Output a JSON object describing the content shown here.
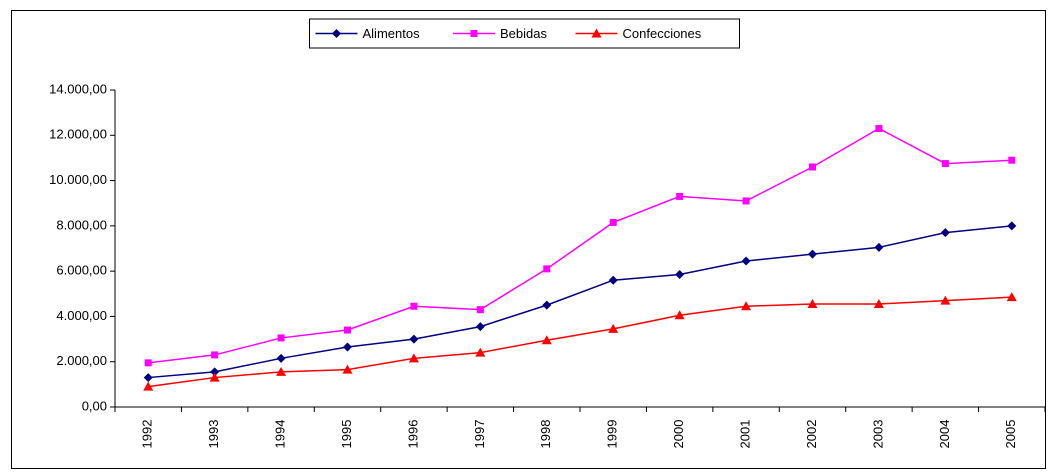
{
  "chart_data": {
    "type": "line",
    "categories": [
      "1992",
      "1993",
      "1994",
      "1995",
      "1996",
      "1997",
      "1998",
      "1999",
      "2000",
      "2001",
      "2002",
      "2003",
      "2004",
      "2005"
    ],
    "series": [
      {
        "name": "Alimentos",
        "color": "#000080",
        "marker": "diamond",
        "values": [
          1300,
          1550,
          2150,
          2650,
          3000,
          3550,
          4500,
          5600,
          5850,
          6450,
          6750,
          7050,
          7700,
          8000
        ]
      },
      {
        "name": "Bebidas",
        "color": "#ff00ff",
        "marker": "square",
        "values": [
          1950,
          2300,
          3050,
          3400,
          4450,
          4300,
          6100,
          8150,
          9300,
          9100,
          10600,
          12300,
          10750,
          10900
        ]
      },
      {
        "name": "Confecciones",
        "color": "#ff0000",
        "marker": "triangle",
        "values": [
          900,
          1300,
          1550,
          1650,
          2150,
          2400,
          2950,
          3450,
          4050,
          4450,
          4550,
          4550,
          4700,
          4850
        ]
      }
    ],
    "ylim": [
      0,
      14000
    ],
    "yticks": [
      {
        "value": 0,
        "label": "0,00"
      },
      {
        "value": 2000,
        "label": "2.000,00"
      },
      {
        "value": 4000,
        "label": "4.000,00"
      },
      {
        "value": 6000,
        "label": "6.000,00"
      },
      {
        "value": 8000,
        "label": "8.000,00"
      },
      {
        "value": 10000,
        "label": "10.000,00"
      },
      {
        "value": 12000,
        "label": "12.000,00"
      },
      {
        "value": 14000,
        "label": "14.000,00"
      }
    ],
    "grid": false,
    "legend": "top"
  }
}
